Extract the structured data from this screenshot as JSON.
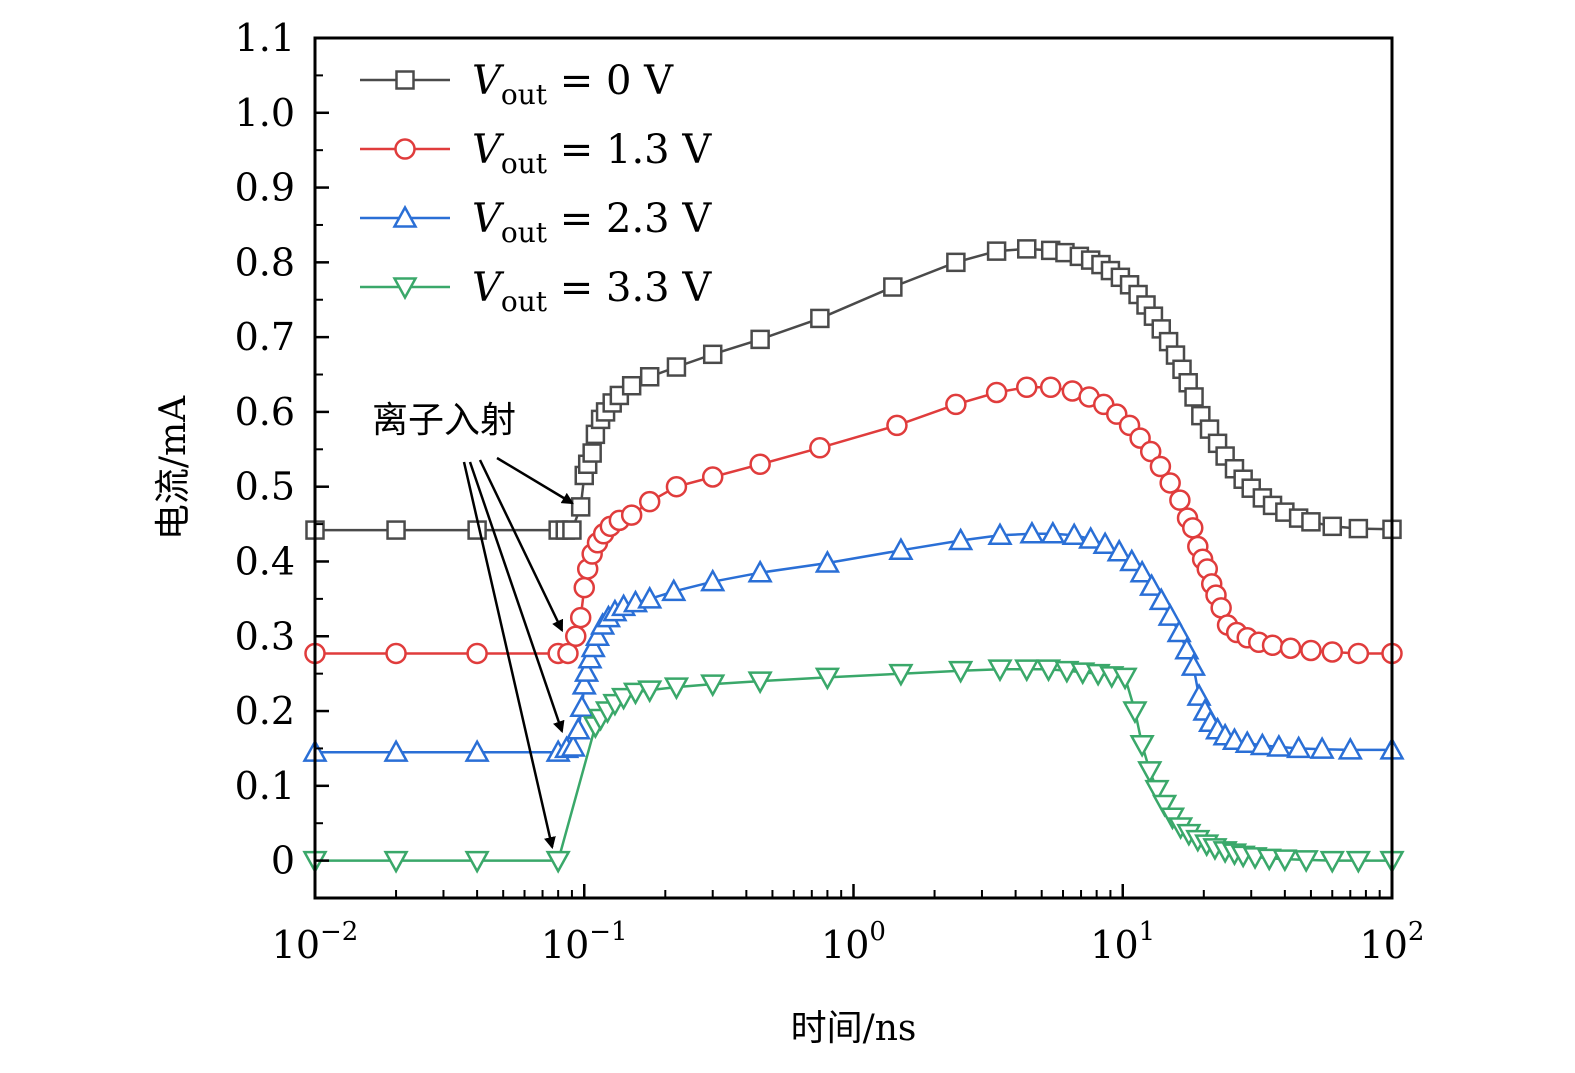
{
  "chart_data": {
    "type": "line",
    "title": "",
    "xlabel": "时间/ns",
    "ylabel": "电流/mA",
    "xscale": "log",
    "xlim": [
      0.01,
      100
    ],
    "ylim": [
      -0.05,
      1.1
    ],
    "x_ticks": [
      {
        "value": 0.01,
        "base": "10",
        "exp": "−2"
      },
      {
        "value": 0.1,
        "base": "10",
        "exp": "−1"
      },
      {
        "value": 1,
        "base": "10",
        "exp": "0"
      },
      {
        "value": 10,
        "base": "10",
        "exp": "1"
      },
      {
        "value": 100,
        "base": "10",
        "exp": "2"
      }
    ],
    "y_ticks": [
      {
        "value": 0,
        "label": "0"
      },
      {
        "value": 0.1,
        "label": "0.1"
      },
      {
        "value": 0.2,
        "label": "0.2"
      },
      {
        "value": 0.3,
        "label": "0.3"
      },
      {
        "value": 0.4,
        "label": "0.4"
      },
      {
        "value": 0.5,
        "label": "0.5"
      },
      {
        "value": 0.6,
        "label": "0.6"
      },
      {
        "value": 0.7,
        "label": "0.7"
      },
      {
        "value": 0.8,
        "label": "0.8"
      },
      {
        "value": 0.9,
        "label": "0.9"
      },
      {
        "value": 1.0,
        "label": "1.0"
      },
      {
        "value": 1.1,
        "label": "1.1"
      }
    ],
    "grid": false,
    "legend_position": "top-left",
    "annotation": {
      "text": "离子入射",
      "targets": [
        {
          "x": 0.095,
          "y": 0.47
        },
        {
          "x": 0.087,
          "y": 0.3
        },
        {
          "x": 0.087,
          "y": 0.165
        },
        {
          "x": 0.08,
          "y": 0.01
        }
      ]
    },
    "series": [
      {
        "name_sym": "V",
        "name_sub": "out",
        "name_val": " = 0 V",
        "color": "#4a4a4a",
        "marker": "square",
        "points": [
          [
            0.01,
            0.442
          ],
          [
            0.02,
            0.442
          ],
          [
            0.04,
            0.442
          ],
          [
            0.08,
            0.442
          ],
          [
            0.085,
            0.442
          ],
          [
            0.09,
            0.442
          ],
          [
            0.097,
            0.473
          ],
          [
            0.1,
            0.515
          ],
          [
            0.103,
            0.53
          ],
          [
            0.107,
            0.545
          ],
          [
            0.11,
            0.57
          ],
          [
            0.115,
            0.59
          ],
          [
            0.12,
            0.6
          ],
          [
            0.127,
            0.612
          ],
          [
            0.135,
            0.622
          ],
          [
            0.15,
            0.635
          ],
          [
            0.175,
            0.647
          ],
          [
            0.22,
            0.66
          ],
          [
            0.3,
            0.677
          ],
          [
            0.45,
            0.697
          ],
          [
            0.75,
            0.725
          ],
          [
            1.4,
            0.767
          ],
          [
            2.4,
            0.8
          ],
          [
            3.4,
            0.815
          ],
          [
            4.4,
            0.818
          ],
          [
            5.4,
            0.816
          ],
          [
            6.1,
            0.813
          ],
          [
            6.9,
            0.808
          ],
          [
            7.6,
            0.803
          ],
          [
            8.3,
            0.797
          ],
          [
            9.0,
            0.789
          ],
          [
            9.8,
            0.78
          ],
          [
            10.6,
            0.77
          ],
          [
            11.4,
            0.757
          ],
          [
            12.2,
            0.743
          ],
          [
            13.0,
            0.728
          ],
          [
            13.9,
            0.711
          ],
          [
            14.8,
            0.694
          ],
          [
            15.7,
            0.676
          ],
          [
            16.6,
            0.657
          ],
          [
            17.5,
            0.639
          ],
          [
            18.4,
            0.62
          ],
          [
            19.5,
            0.595
          ],
          [
            21,
            0.577
          ],
          [
            22.5,
            0.558
          ],
          [
            24,
            0.541
          ],
          [
            26,
            0.524
          ],
          [
            28,
            0.51
          ],
          [
            30,
            0.498
          ],
          [
            33,
            0.485
          ],
          [
            36,
            0.475
          ],
          [
            40,
            0.466
          ],
          [
            45,
            0.458
          ],
          [
            50,
            0.453
          ],
          [
            60,
            0.447
          ],
          [
            75,
            0.444
          ],
          [
            100,
            0.443
          ]
        ]
      },
      {
        "name_sym": "V",
        "name_sub": "out",
        "name_val": " = 1.3 V",
        "color": "#e03c3c",
        "marker": "circle",
        "points": [
          [
            0.01,
            0.277
          ],
          [
            0.02,
            0.277
          ],
          [
            0.04,
            0.277
          ],
          [
            0.08,
            0.277
          ],
          [
            0.087,
            0.277
          ],
          [
            0.093,
            0.3
          ],
          [
            0.097,
            0.325
          ],
          [
            0.1,
            0.365
          ],
          [
            0.103,
            0.39
          ],
          [
            0.107,
            0.41
          ],
          [
            0.112,
            0.425
          ],
          [
            0.118,
            0.437
          ],
          [
            0.125,
            0.447
          ],
          [
            0.135,
            0.455
          ],
          [
            0.15,
            0.462
          ],
          [
            0.175,
            0.48
          ],
          [
            0.22,
            0.5
          ],
          [
            0.3,
            0.513
          ],
          [
            0.45,
            0.53
          ],
          [
            0.75,
            0.552
          ],
          [
            1.45,
            0.582
          ],
          [
            2.4,
            0.61
          ],
          [
            3.4,
            0.626
          ],
          [
            4.4,
            0.633
          ],
          [
            5.4,
            0.633
          ],
          [
            6.5,
            0.628
          ],
          [
            7.5,
            0.62
          ],
          [
            8.5,
            0.61
          ],
          [
            9.5,
            0.597
          ],
          [
            10.6,
            0.582
          ],
          [
            11.6,
            0.565
          ],
          [
            12.7,
            0.547
          ],
          [
            13.8,
            0.527
          ],
          [
            15,
            0.505
          ],
          [
            16.3,
            0.482
          ],
          [
            17.4,
            0.458
          ],
          [
            18.2,
            0.445
          ],
          [
            19,
            0.42
          ],
          [
            19.8,
            0.403
          ],
          [
            20.6,
            0.39
          ],
          [
            21.4,
            0.37
          ],
          [
            22.2,
            0.355
          ],
          [
            23.2,
            0.338
          ],
          [
            24.5,
            0.315
          ],
          [
            26.5,
            0.305
          ],
          [
            29,
            0.298
          ],
          [
            32,
            0.292
          ],
          [
            36,
            0.288
          ],
          [
            42,
            0.284
          ],
          [
            50,
            0.281
          ],
          [
            60,
            0.279
          ],
          [
            75,
            0.277
          ],
          [
            100,
            0.277
          ]
        ]
      },
      {
        "name_sym": "V",
        "name_sub": "out",
        "name_val": " = 2.3 V",
        "color": "#2a6fd6",
        "marker": "triangle-up",
        "points": [
          [
            0.01,
            0.145
          ],
          [
            0.02,
            0.145
          ],
          [
            0.04,
            0.145
          ],
          [
            0.08,
            0.145
          ],
          [
            0.086,
            0.15
          ],
          [
            0.091,
            0.152
          ],
          [
            0.095,
            0.175
          ],
          [
            0.098,
            0.205
          ],
          [
            0.1,
            0.235
          ],
          [
            0.102,
            0.252
          ],
          [
            0.105,
            0.27
          ],
          [
            0.108,
            0.285
          ],
          [
            0.112,
            0.3
          ],
          [
            0.117,
            0.315
          ],
          [
            0.123,
            0.325
          ],
          [
            0.13,
            0.333
          ],
          [
            0.14,
            0.34
          ],
          [
            0.155,
            0.345
          ],
          [
            0.175,
            0.35
          ],
          [
            0.215,
            0.36
          ],
          [
            0.3,
            0.373
          ],
          [
            0.45,
            0.385
          ],
          [
            0.8,
            0.398
          ],
          [
            1.5,
            0.415
          ],
          [
            2.5,
            0.428
          ],
          [
            3.5,
            0.435
          ],
          [
            4.6,
            0.437
          ],
          [
            5.5,
            0.437
          ],
          [
            6.6,
            0.435
          ],
          [
            7.6,
            0.43
          ],
          [
            8.6,
            0.423
          ],
          [
            9.7,
            0.413
          ],
          [
            10.8,
            0.4
          ],
          [
            11.8,
            0.385
          ],
          [
            12.8,
            0.367
          ],
          [
            13.9,
            0.348
          ],
          [
            15,
            0.327
          ],
          [
            16.2,
            0.305
          ],
          [
            17.3,
            0.282
          ],
          [
            18.3,
            0.26
          ],
          [
            19.2,
            0.22
          ],
          [
            20.2,
            0.2
          ],
          [
            21.2,
            0.185
          ],
          [
            22.5,
            0.175
          ],
          [
            24,
            0.167
          ],
          [
            26,
            0.161
          ],
          [
            29,
            0.157
          ],
          [
            33,
            0.154
          ],
          [
            38,
            0.152
          ],
          [
            45,
            0.15
          ],
          [
            55,
            0.149
          ],
          [
            70,
            0.148
          ],
          [
            100,
            0.148
          ]
        ]
      },
      {
        "name_sym": "V",
        "name_sub": "out",
        "name_val": " = 3.3 V",
        "color": "#3aa86a",
        "marker": "triangle-down",
        "points": [
          [
            0.01,
            0.0
          ],
          [
            0.02,
            0.0
          ],
          [
            0.04,
            0.0
          ],
          [
            0.08,
            0.0
          ],
          [
            0.11,
            0.18
          ],
          [
            0.115,
            0.19
          ],
          [
            0.122,
            0.2
          ],
          [
            0.13,
            0.21
          ],
          [
            0.14,
            0.218
          ],
          [
            0.155,
            0.225
          ],
          [
            0.175,
            0.228
          ],
          [
            0.22,
            0.232
          ],
          [
            0.3,
            0.236
          ],
          [
            0.45,
            0.24
          ],
          [
            0.8,
            0.245
          ],
          [
            1.5,
            0.25
          ],
          [
            2.5,
            0.254
          ],
          [
            3.5,
            0.256
          ],
          [
            4.4,
            0.256
          ],
          [
            5.3,
            0.256
          ],
          [
            6.2,
            0.254
          ],
          [
            7.1,
            0.252
          ],
          [
            8.1,
            0.25
          ],
          [
            9.1,
            0.247
          ],
          [
            10.2,
            0.245
          ],
          [
            11.1,
            0.2
          ],
          [
            11.8,
            0.155
          ],
          [
            12.6,
            0.12
          ],
          [
            13.4,
            0.095
          ],
          [
            14.3,
            0.075
          ],
          [
            15.3,
            0.058
          ],
          [
            16.4,
            0.045
          ],
          [
            17.6,
            0.036
          ],
          [
            19,
            0.028
          ],
          [
            20.5,
            0.022
          ],
          [
            22,
            0.017
          ],
          [
            24,
            0.013
          ],
          [
            26,
            0.01
          ],
          [
            28,
            0.007
          ],
          [
            31,
            0.005
          ],
          [
            35,
            0.003
          ],
          [
            40,
            0.002
          ],
          [
            48,
            0.001
          ],
          [
            60,
            0.0
          ],
          [
            75,
            0.0
          ],
          [
            100,
            0.0
          ]
        ]
      }
    ]
  }
}
